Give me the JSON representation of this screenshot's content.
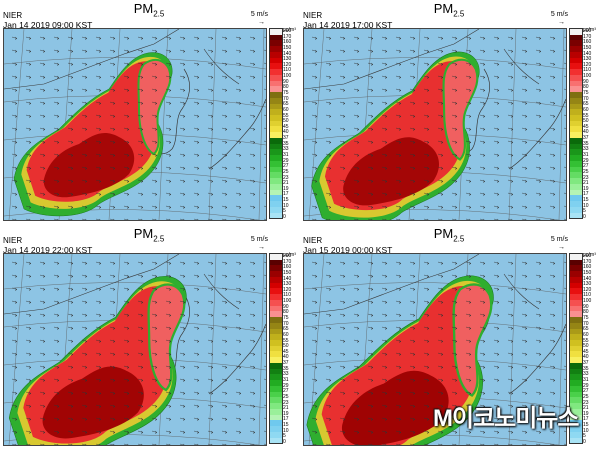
{
  "panels": [
    {
      "pollutant": "PM",
      "subscript": "2.5",
      "agency": "NIER",
      "timestamp": "Jan 14 2019 09:00 KST",
      "wind_scale": "5 m/s",
      "plume_stage": 0
    },
    {
      "pollutant": "PM",
      "subscript": "2.5",
      "agency": "NIER",
      "timestamp": "Jan 14 2019 17:00 KST",
      "wind_scale": "5 m/s",
      "plume_stage": 1
    },
    {
      "pollutant": "PM",
      "subscript": "2.5",
      "agency": "NIER",
      "timestamp": "Jan 14 2019 22:00 KST",
      "wind_scale": "5 m/s",
      "plume_stage": 2
    },
    {
      "pollutant": "PM",
      "subscript": "2.5",
      "agency": "NIER",
      "timestamp": "Jan 15 2019 00:00 KST",
      "wind_scale": "5 m/s",
      "plume_stage": 3
    }
  ],
  "colorbar": {
    "unit": "µg/m³",
    "ticks": [
      "200",
      "170",
      "160",
      "150",
      "140",
      "130",
      "120",
      "110",
      "100",
      "90",
      "80",
      "75",
      "70",
      "65",
      "60",
      "55",
      "50",
      "45",
      "40",
      "37",
      "35",
      "33",
      "31",
      "29",
      "27",
      "25",
      "23",
      "21",
      "19",
      "17",
      "15",
      "10",
      "5",
      "0"
    ],
    "colors": [
      "#f2f2f2",
      "#5a0000",
      "#7a0000",
      "#9a0000",
      "#b80000",
      "#d40000",
      "#e81010",
      "#f23030",
      "#f55050",
      "#f87070",
      "#fa9090",
      "#7f6f10",
      "#958515",
      "#aa9a18",
      "#c0b01c",
      "#d0c020",
      "#e0d030",
      "#f0e040",
      "#f8f060",
      "#0a6a0a",
      "#128012",
      "#1a961a",
      "#22ac22",
      "#34c034",
      "#4ad04a",
      "#64dc64",
      "#80e880",
      "#9af09a",
      "#b4f4b4",
      "#6fc9ee",
      "#7fd1f0",
      "#8fd9f2",
      "#a8e3f5"
    ]
  },
  "map_style": {
    "sea": "#8dc4e4",
    "land_clean": "#82c2e6",
    "coast": "#3a3a3a",
    "grid": "#5a5a5a"
  },
  "watermark": "M이코노미뉴스"
}
